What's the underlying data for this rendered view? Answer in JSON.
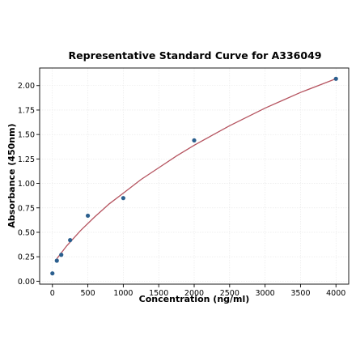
{
  "chart_data": {
    "type": "scatter",
    "title": "Representative Standard Curve for A336049",
    "xlabel": "Concentration (ng/ml)",
    "ylabel": "Absorbance (450nm)",
    "xlim": [
      -180,
      4180
    ],
    "ylim": [
      -0.03,
      2.18
    ],
    "x_ticks": [
      0,
      500,
      1000,
      1500,
      2000,
      2500,
      3000,
      3500,
      4000
    ],
    "x_tick_labels": [
      "0",
      "500",
      "1000",
      "1500",
      "2000",
      "2500",
      "3000",
      "3500",
      "4000"
    ],
    "y_ticks": [
      0,
      0.25,
      0.5,
      0.75,
      1.0,
      1.25,
      1.5,
      1.75,
      2.0
    ],
    "y_tick_labels": [
      "0.00",
      "0.25",
      "0.50",
      "0.75",
      "1.00",
      "1.25",
      "1.50",
      "1.75",
      "2.00"
    ],
    "grid": true,
    "points": {
      "x": [
        0,
        62.5,
        125,
        250,
        500,
        1000,
        2000,
        4000
      ],
      "y": [
        0.08,
        0.21,
        0.27,
        0.42,
        0.67,
        0.85,
        1.44,
        2.07
      ],
      "color": "#2b5f8e"
    },
    "fit_curve": {
      "x": [
        62.5,
        200,
        400,
        600,
        800,
        1000,
        1250,
        1500,
        1750,
        2000,
        2250,
        2500,
        2750,
        3000,
        3250,
        3500,
        3750,
        4000
      ],
      "y": [
        0.23,
        0.36,
        0.52,
        0.66,
        0.79,
        0.9,
        1.04,
        1.16,
        1.28,
        1.39,
        1.49,
        1.59,
        1.68,
        1.77,
        1.85,
        1.93,
        2.0,
        2.07
      ],
      "color": "#b5535f"
    }
  }
}
